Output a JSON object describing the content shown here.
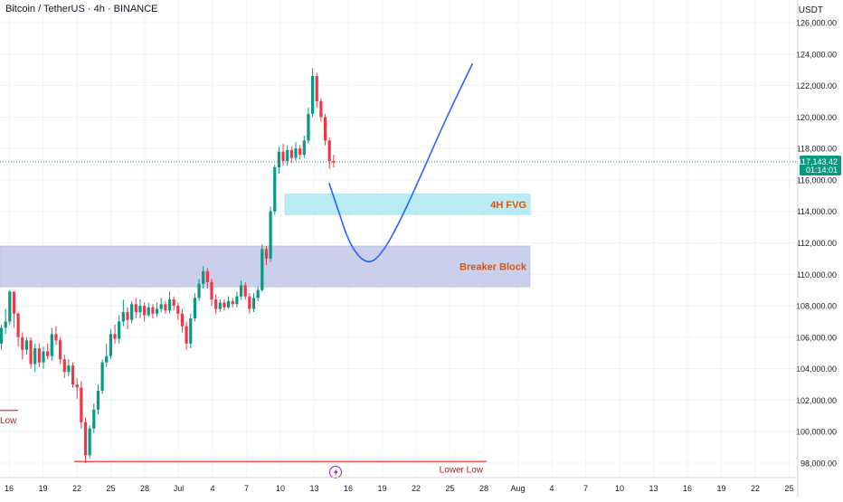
{
  "chart_data": {
    "type": "candlestick",
    "title": "Bitcoin / TetherUS · 4h · BINANCE",
    "currency": "USDT",
    "y_range": [
      97500,
      127000
    ],
    "y_ticks": [
      "98,000.00",
      "100,000.00",
      "102,000.00",
      "104,000.00",
      "106,000.00",
      "108,000.00",
      "110,000.00",
      "112,000.00",
      "114,000.00",
      "116,000.00",
      "118,000.00",
      "120,000.00",
      "122,000.00",
      "124,000.00",
      "126,000.00"
    ],
    "x_ticks": [
      "16",
      "19",
      "22",
      "25",
      "28",
      "Jul",
      "4",
      "7",
      "10",
      "13",
      "16",
      "19",
      "22",
      "25",
      "28",
      "Aug",
      "4",
      "7",
      "10",
      "13",
      "16",
      "19",
      "22",
      "25"
    ],
    "last_price": "117,143.42",
    "countdown": "01:14:01",
    "zones": [
      {
        "label": "4H FVG",
        "from": 113800,
        "to": 115100,
        "color": "#b2ebf2",
        "label_color": "#e65100"
      },
      {
        "label": "Breaker Block",
        "from": 109200,
        "to": 111800,
        "color": "#c5cae9",
        "label_color": "#e65100"
      }
    ],
    "annotations": [
      {
        "label": "Lower Low",
        "price": 98100
      },
      {
        "label": "Low",
        "price": 100600
      }
    ],
    "projection_path": [
      [
        0,
        115800
      ],
      [
        0.4,
        114000
      ],
      [
        0.9,
        111800
      ],
      [
        1.6,
        110600
      ],
      [
        2.2,
        111200
      ],
      [
        3.0,
        113300
      ],
      [
        4.0,
        116600
      ],
      [
        5.0,
        120000
      ],
      [
        6.1,
        123400
      ]
    ],
    "candles": [
      [
        105.6,
        106.6,
        106.8,
        105.2
      ],
      [
        106.6,
        107.0,
        107.8,
        106.2
      ],
      [
        107.0,
        108.9,
        109.0,
        106.8
      ],
      [
        108.9,
        107.5,
        108.9,
        106.6
      ],
      [
        107.5,
        106.0,
        107.6,
        105.4
      ],
      [
        106.0,
        105.2,
        106.3,
        104.6
      ],
      [
        105.2,
        105.8,
        106.0,
        104.9
      ],
      [
        105.8,
        104.3,
        106.0,
        104.0
      ],
      [
        104.3,
        105.3,
        105.6,
        103.8
      ],
      [
        105.3,
        104.4,
        105.6,
        104.1
      ],
      [
        104.4,
        105.1,
        105.4,
        104.0
      ],
      [
        105.1,
        104.8,
        105.6,
        104.6
      ],
      [
        104.8,
        106.2,
        106.6,
        104.5
      ],
      [
        106.2,
        105.8,
        106.7,
        105.5
      ],
      [
        105.8,
        104.6,
        106.0,
        104.3
      ],
      [
        104.6,
        103.8,
        104.9,
        103.4
      ],
      [
        103.8,
        104.2,
        104.6,
        103.5
      ],
      [
        104.2,
        103.0,
        104.4,
        102.8
      ],
      [
        103.0,
        102.8,
        103.4,
        102.1
      ],
      [
        102.8,
        100.6,
        103.2,
        100.2
      ],
      [
        100.6,
        98.5,
        100.9,
        98.0
      ],
      [
        98.5,
        100.2,
        100.4,
        98.3
      ],
      [
        100.2,
        101.4,
        101.8,
        99.9
      ],
      [
        101.4,
        102.6,
        103.0,
        101.1
      ],
      [
        102.6,
        104.4,
        104.6,
        102.4
      ],
      [
        104.4,
        104.8,
        105.6,
        104.1
      ],
      [
        104.8,
        106.2,
        106.5,
        104.6
      ],
      [
        106.2,
        105.9,
        106.8,
        105.6
      ],
      [
        105.9,
        107.0,
        107.4,
        105.6
      ],
      [
        107.0,
        107.6,
        108.4,
        106.7
      ],
      [
        107.6,
        107.1,
        107.9,
        106.5
      ],
      [
        107.1,
        108.1,
        108.3,
        106.9
      ],
      [
        108.1,
        107.6,
        108.5,
        107.2
      ],
      [
        107.6,
        108.0,
        108.4,
        107.2
      ],
      [
        108.0,
        107.4,
        108.2,
        107.0
      ],
      [
        107.4,
        107.9,
        108.2,
        107.3
      ],
      [
        107.9,
        107.5,
        108.1,
        107.2
      ],
      [
        107.5,
        107.8,
        108.2,
        107.3
      ],
      [
        107.8,
        108.1,
        108.5,
        107.6
      ],
      [
        108.1,
        107.7,
        108.3,
        107.5
      ],
      [
        107.7,
        108.4,
        108.9,
        107.5
      ],
      [
        108.4,
        108.0,
        108.6,
        107.7
      ],
      [
        108.0,
        107.5,
        108.2,
        107.1
      ],
      [
        107.5,
        106.7,
        107.8,
        106.3
      ],
      [
        106.7,
        105.6,
        107.0,
        105.2
      ],
      [
        105.6,
        107.2,
        107.5,
        105.3
      ],
      [
        107.2,
        108.5,
        108.8,
        107.0
      ],
      [
        108.5,
        109.4,
        109.7,
        108.3
      ],
      [
        109.4,
        110.2,
        110.5,
        109.1
      ],
      [
        110.2,
        109.5,
        110.4,
        109.1
      ],
      [
        109.5,
        108.4,
        109.7,
        108.0
      ],
      [
        108.4,
        107.8,
        108.7,
        107.5
      ],
      [
        107.8,
        108.2,
        108.4,
        107.6
      ],
      [
        108.2,
        107.9,
        108.4,
        107.7
      ],
      [
        107.9,
        108.3,
        108.6,
        107.8
      ],
      [
        108.3,
        108.1,
        108.5,
        107.9
      ],
      [
        108.1,
        108.6,
        108.9,
        107.9
      ],
      [
        108.6,
        109.3,
        109.6,
        108.4
      ],
      [
        109.3,
        108.6,
        109.5,
        108.4
      ],
      [
        108.6,
        107.8,
        108.8,
        107.5
      ],
      [
        107.8,
        108.5,
        108.8,
        107.6
      ],
      [
        108.5,
        109.0,
        109.2,
        108.3
      ],
      [
        109.0,
        111.6,
        111.9,
        108.9
      ],
      [
        111.6,
        111.0,
        111.8,
        110.6
      ],
      [
        111.0,
        114.0,
        114.3,
        110.8
      ],
      [
        114.0,
        116.8,
        117.0,
        113.8
      ],
      [
        116.8,
        117.8,
        118.1,
        116.4
      ],
      [
        117.8,
        117.2,
        118.3,
        116.9
      ],
      [
        117.2,
        117.9,
        118.2,
        116.9
      ],
      [
        117.9,
        117.4,
        118.1,
        117.1
      ],
      [
        117.4,
        118.0,
        118.4,
        117.2
      ],
      [
        118.0,
        117.6,
        118.2,
        117.3
      ],
      [
        117.6,
        118.5,
        118.8,
        117.4
      ],
      [
        118.5,
        120.2,
        120.6,
        118.3
      ],
      [
        120.2,
        122.6,
        123.1,
        120.0
      ],
      [
        122.6,
        121.0,
        122.8,
        120.6
      ],
      [
        121.0,
        120.0,
        121.2,
        119.7
      ],
      [
        120.0,
        118.5,
        120.2,
        118.2
      ],
      [
        118.5,
        117.2,
        118.7,
        116.7
      ],
      [
        117.2,
        117.1,
        117.6,
        116.8
      ]
    ]
  }
}
